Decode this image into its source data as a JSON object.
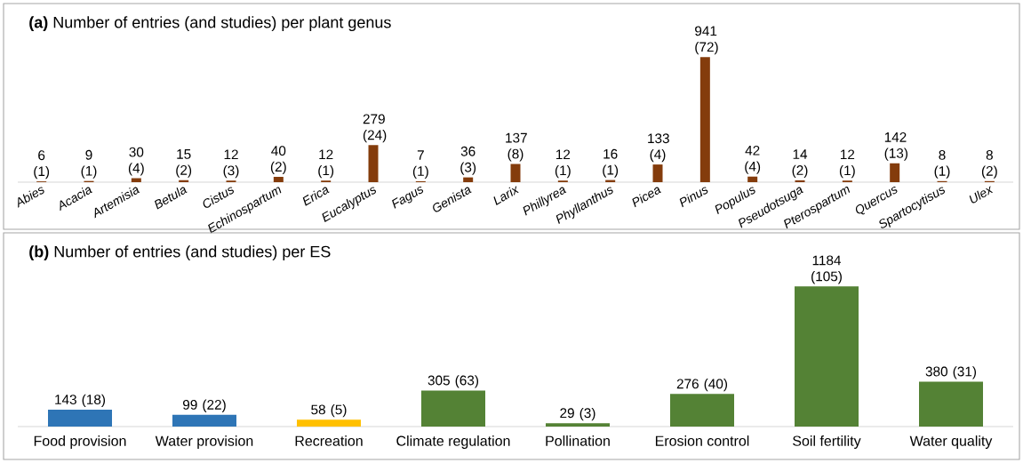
{
  "chart_data": [
    {
      "type": "bar",
      "title": "**(a)**   Number of entries (and studies) per plant genus",
      "categories": [
        "Abies",
        "Acacia",
        "Artemisia",
        "Betula",
        "Cistus",
        "Echinospartum",
        "Erica",
        "Eucalyptus",
        "Fagus",
        "Genista",
        "Larix",
        "Phillyrea",
        "Phyllanthus",
        "Picea",
        "Pinus",
        "Populus",
        "Pseudotsuga",
        "Pterospartum",
        "Quercus",
        "Spartocytisus",
        "Ulex"
      ],
      "values": [
        6,
        9,
        30,
        15,
        12,
        40,
        12,
        279,
        7,
        36,
        137,
        12,
        16,
        133,
        941,
        42,
        14,
        12,
        142,
        8,
        8
      ],
      "color": "#843c0c",
      "value_labels": [
        "6 (1)",
        "9 (1)",
        "30 (4)",
        "15 (2)",
        "12 (3)",
        "40 (2)",
        "12 (1)",
        "279 (24)",
        "7 (1)",
        "36 (3)",
        "137 (8)",
        "12 (1)",
        "16 (1)",
        "133 (4)",
        "941 (72)",
        "42 (4)",
        "14 (2)",
        "12 (1)",
        "142 (13)",
        "8 (1)",
        "8 (2)"
      ]
    },
    {
      "type": "bar",
      "title": "**(b)**   Number of entries (and studies) per ES",
      "categories": [
        "Food provision",
        "Water provision",
        "Recreation",
        "Climate regulation",
        "Pollination",
        "Erosion control",
        "Soil fertility",
        "Water quality"
      ],
      "values": [
        143,
        99,
        58,
        305,
        29,
        276,
        1184,
        380
      ],
      "colors": [
        "#2e75b6",
        "#2e75b6",
        "#ffc000",
        "#548235",
        "#548235",
        "#548235",
        "#548235",
        "#548235"
      ],
      "value_labels": [
        "143 (18)",
        "99 (22)",
        "58 (5)",
        "305 (63)",
        "29 (3)",
        "276 (40)",
        "1184 (105)",
        "380 (31)"
      ]
    }
  ]
}
